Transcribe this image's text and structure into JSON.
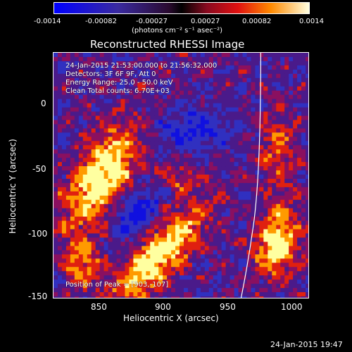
{
  "colorbar": {
    "ticks": [
      "-0.0014",
      "-0.00082",
      "-0.00027",
      "0.00027",
      "0.00082",
      "0.0014"
    ],
    "units": "(photons cm⁻² s⁻¹ asec⁻²)"
  },
  "plot": {
    "title": "Reconstructed RHESSI Image",
    "xlabel": "Heliocentric X (arcsec)",
    "ylabel": "Heliocentric Y (arcsec)",
    "xticks": [
      "850",
      "900",
      "950",
      "1000"
    ],
    "yticks": [
      "0",
      "-50",
      "-100",
      "-150"
    ],
    "xlim": [
      815,
      1005
    ],
    "ylim": [
      -152,
      22
    ]
  },
  "info": {
    "line1": "24-Jan-2015 21:53:00.000 to 21:56:32.000",
    "line2": "Detectors: 3F 6F 9F, Att 0",
    "line3": "Energy Range: 25.0 - 50.0 keV",
    "line4": "Clean    Total counts: 6.70E+03",
    "peak": "Position of Peak = [903,-107]"
  },
  "footer": {
    "timestamp": "24-Jan-2015 19:47"
  },
  "colors": {
    "neg_deep": "#1010e0",
    "neg_mid": "#3030c0",
    "zero": "#4a1a8a",
    "pos_low": "#8a1060",
    "pos_mid": "#e02010",
    "pos_high": "#ff9a00",
    "pos_max": "#ffffa0",
    "limb": "#ffffff"
  }
}
